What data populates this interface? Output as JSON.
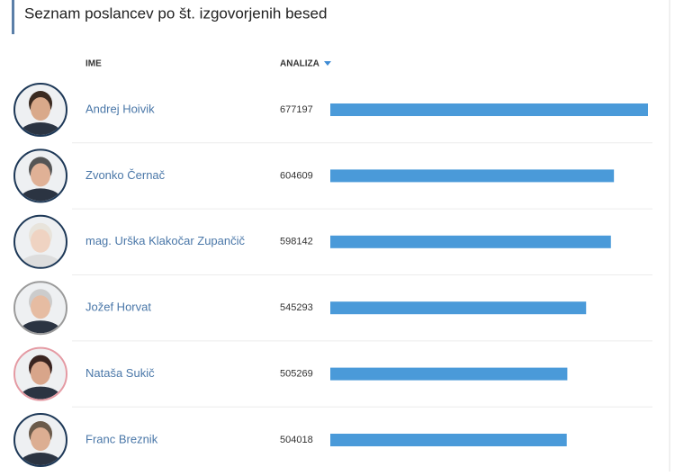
{
  "header": {
    "title": "Seznam poslancev po št. izgovorjenih besed"
  },
  "table": {
    "columns": [
      "IME",
      "ANALIZA"
    ],
    "rows": [
      {
        "name": "Andrej Hoivik",
        "value": 677197
      },
      {
        "name": "Zvonko Černač",
        "value": 604609
      },
      {
        "name": "mag. Urška Klakočar Zupančič",
        "value": 598142
      },
      {
        "name": "Jožef Horvat",
        "value": 545293
      },
      {
        "name": "Nataša Sukič",
        "value": 505269
      },
      {
        "name": "Franc Breznik",
        "value": 504018
      }
    ]
  }
}
